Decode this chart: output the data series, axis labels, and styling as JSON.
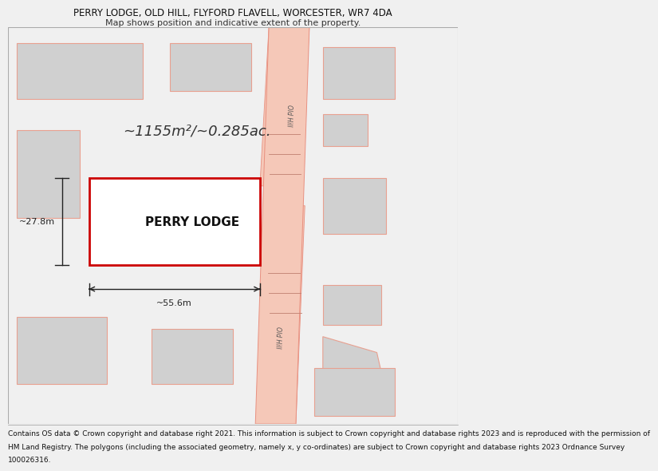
{
  "title": "PERRY LODGE, OLD HILL, FLYFORD FLAVELL, WORCESTER, WR7 4DA",
  "subtitle": "Map shows position and indicative extent of the property.",
  "footer_lines": [
    "Contains OS data © Crown copyright and database right 2021. This information is subject to Crown copyright and database rights 2023 and is reproduced with the permission of",
    "HM Land Registry. The polygons (including the associated geometry, namely x, y co-ordinates) are subject to Crown copyright and database rights 2023 Ordnance Survey",
    "100026316."
  ],
  "bg_color": "#f0f0f0",
  "map_bg": "#ffffff",
  "road_color": "#f5c8b8",
  "road_edge_color": "#e89080",
  "property_outline_color": "#cc0000",
  "property_fill_color": "#ffffff",
  "neighbor_fill_color": "#d0d0d0",
  "neighbor_outline_color": "#e8a090",
  "property_label": "PERRY LODGE",
  "area_text": "~1155m²/~0.285ac.",
  "width_text": "~55.6m",
  "height_text": "~27.8m",
  "title_fontsize": 8.5,
  "subtitle_fontsize": 8,
  "footer_fontsize": 6.5,
  "label_fontsize": 11,
  "area_fontsize": 13,
  "dim_fontsize": 8
}
